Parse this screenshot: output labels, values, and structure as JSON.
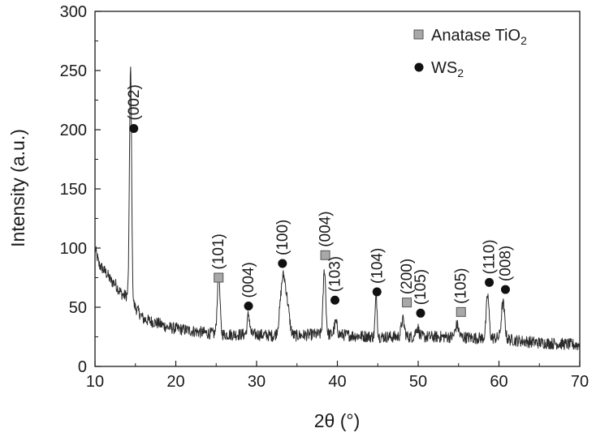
{
  "chart_data": {
    "type": "line",
    "xlabel": "2θ (°)",
    "ylabel": "Intensity (a.u.)",
    "xlim": [
      10,
      70
    ],
    "ylim": [
      0,
      300
    ],
    "x_ticks": [
      10,
      20,
      30,
      40,
      50,
      60,
      70
    ],
    "y_ticks": [
      0,
      50,
      100,
      150,
      200,
      250,
      300
    ],
    "grid": false,
    "legend_position": "top-right",
    "legend": [
      {
        "marker": "square",
        "label": "Anatase TiO",
        "subscript": "2",
        "color": "#a8a8a8"
      },
      {
        "marker": "circle",
        "label": "WS",
        "subscript": "2",
        "color": "#111111"
      }
    ],
    "series": [
      {
        "color": "#2a2a2a",
        "baseline_points": [
          [
            10,
            100
          ],
          [
            10.5,
            86
          ],
          [
            11,
            82
          ],
          [
            11.5,
            78
          ],
          [
            12,
            72
          ],
          [
            12.5,
            70
          ],
          [
            13,
            64
          ],
          [
            13.5,
            60
          ],
          [
            14,
            60
          ],
          [
            15,
            50
          ],
          [
            15.5,
            45
          ],
          [
            16,
            40
          ],
          [
            17,
            38
          ],
          [
            18,
            36
          ],
          [
            19,
            33
          ],
          [
            20,
            32
          ],
          [
            22,
            30
          ],
          [
            24,
            28
          ],
          [
            26,
            27
          ],
          [
            28,
            27
          ],
          [
            30,
            27
          ],
          [
            32,
            26
          ],
          [
            35,
            26
          ],
          [
            37,
            27
          ],
          [
            40,
            27
          ],
          [
            42,
            26
          ],
          [
            45,
            25
          ],
          [
            47,
            25
          ],
          [
            50,
            25
          ],
          [
            52,
            25
          ],
          [
            55,
            25
          ],
          [
            57,
            24
          ],
          [
            60,
            24
          ],
          [
            62,
            22
          ],
          [
            65,
            20
          ],
          [
            68,
            19
          ],
          [
            70,
            18
          ]
        ],
        "peaks": [
          {
            "x": 14.4,
            "height": 196,
            "width": 0.13
          },
          {
            "x": 25.3,
            "height": 52,
            "width": 0.16
          },
          {
            "x": 29.0,
            "height": 17,
            "width": 0.15
          },
          {
            "x": 33.3,
            "height": 50,
            "width": 0.35
          },
          {
            "x": 33.9,
            "height": 14,
            "width": 0.25
          },
          {
            "x": 38.4,
            "height": 55,
            "width": 0.16
          },
          {
            "x": 39.8,
            "height": 10,
            "width": 0.18
          },
          {
            "x": 44.8,
            "height": 35,
            "width": 0.12
          },
          {
            "x": 48.1,
            "height": 14,
            "width": 0.2
          },
          {
            "x": 49.9,
            "height": 8,
            "width": 0.2
          },
          {
            "x": 54.8,
            "height": 10,
            "width": 0.2
          },
          {
            "x": 58.6,
            "height": 36,
            "width": 0.17
          },
          {
            "x": 60.5,
            "height": 30,
            "width": 0.2
          }
        ],
        "noise_amplitude": 5
      }
    ],
    "annotations": [
      {
        "phase": "WS2",
        "marker": "circle",
        "x": 14.8,
        "y": 201,
        "label": "(002)"
      },
      {
        "phase": "TiO2",
        "marker": "square",
        "x": 25.3,
        "y": 75,
        "label": "(101)"
      },
      {
        "phase": "WS2",
        "marker": "circle",
        "x": 29.0,
        "y": 51,
        "label": "(004)"
      },
      {
        "phase": "WS2",
        "marker": "circle",
        "x": 33.2,
        "y": 87,
        "label": "(100)"
      },
      {
        "phase": "TiO2",
        "marker": "square",
        "x": 38.5,
        "y": 94,
        "label": "(004)"
      },
      {
        "phase": "WS2",
        "marker": "circle",
        "x": 39.7,
        "y": 56,
        "label": "(103)"
      },
      {
        "phase": "WS2",
        "marker": "circle",
        "x": 44.9,
        "y": 63,
        "label": "(104)"
      },
      {
        "phase": "TiO2",
        "marker": "square",
        "x": 48.6,
        "y": 54,
        "label": "(200)"
      },
      {
        "phase": "WS2",
        "marker": "circle",
        "x": 50.3,
        "y": 45,
        "label": "(105)"
      },
      {
        "phase": "TiO2",
        "marker": "square",
        "x": 55.3,
        "y": 46,
        "label": "(105)"
      },
      {
        "phase": "WS2",
        "marker": "circle",
        "x": 58.8,
        "y": 71,
        "label": "(110)"
      },
      {
        "phase": "WS2",
        "marker": "circle",
        "x": 60.8,
        "y": 65,
        "label": "(008)"
      }
    ]
  }
}
